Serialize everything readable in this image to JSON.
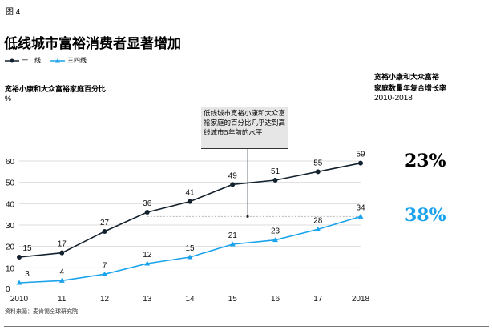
{
  "figure_label": "图 4",
  "chart_data": {
    "type": "line",
    "title": "低线城市富裕消费者显著增加",
    "ylabel": "宽裕小康和大众富裕家庭百分比",
    "yunit": "%",
    "categories": [
      "2010",
      "11",
      "12",
      "13",
      "14",
      "15",
      "16",
      "17",
      "2018"
    ],
    "ylim": [
      0,
      60
    ],
    "yticks": [
      0,
      10,
      20,
      30,
      40,
      50,
      60
    ],
    "grid": true,
    "legend_position": "top-left",
    "series": [
      {
        "name": "一二线",
        "color": "#13212e",
        "marker": "circle",
        "values": [
          15,
          17,
          27,
          36,
          41,
          49,
          51,
          55,
          59
        ]
      },
      {
        "name": "三四线",
        "color": "#1aa3ec",
        "marker": "triangle",
        "values": [
          3,
          4,
          7,
          12,
          15,
          21,
          23,
          28,
          34
        ]
      }
    ],
    "annotation": {
      "text": "低线城市宽裕小康和大众富裕家庭的百分比几乎达到高线城市5年前的水平",
      "reference_value": 34
    },
    "cagr": {
      "label_line1": "宽裕小康和大众富裕",
      "label_line2": "家庭数量年复合增长率",
      "period": "2010-2018",
      "values": [
        {
          "series": "一二线",
          "value": "23%",
          "color": "#000000"
        },
        {
          "series": "三四线",
          "value": "38%",
          "color": "#1aa3ec"
        }
      ]
    }
  },
  "source": "资料来源：麦肯锡全球研究院"
}
